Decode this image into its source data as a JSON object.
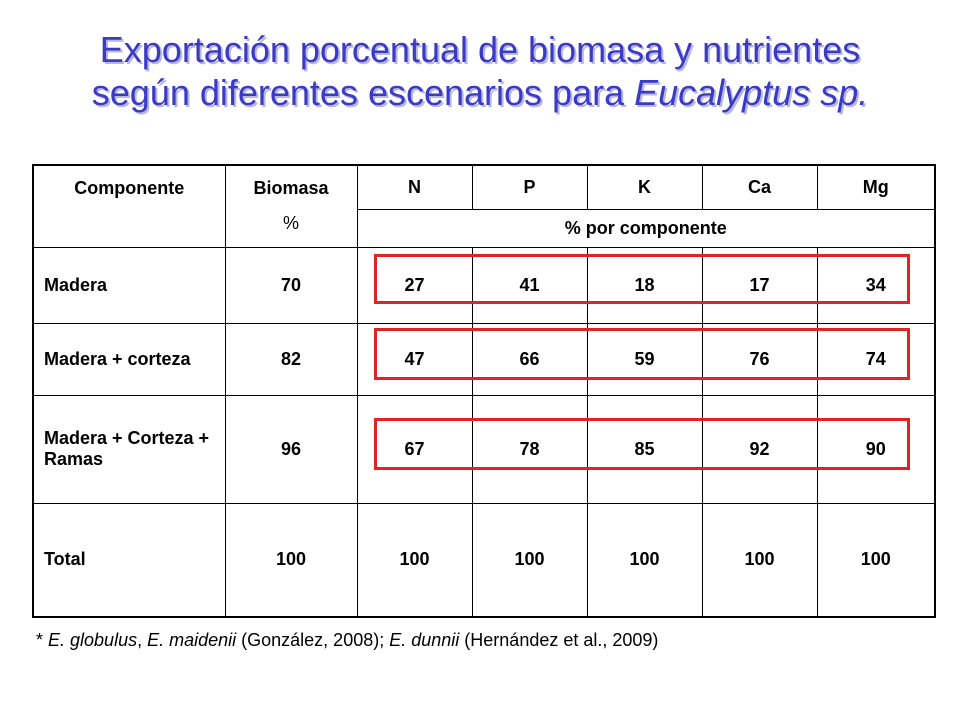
{
  "title": {
    "line1": "Exportación porcentual de biomasa y nutrientes",
    "line2_prefix": "según diferentes escenarios para ",
    "line2_italic": "Eucalyptus sp."
  },
  "table": {
    "headers": {
      "componente": "Componente",
      "biomasa": "Biomasa",
      "biomasa_unit": "%",
      "n": "N",
      "p": "P",
      "k": "K",
      "ca": "Ca",
      "mg": "Mg",
      "subheader": "% por componente"
    },
    "rows": [
      {
        "name": "Madera",
        "biomasa": "70",
        "n": "27",
        "p": "41",
        "k": "18",
        "ca": "17",
        "mg": "34"
      },
      {
        "name": "Madera + corteza",
        "biomasa": "82",
        "n": "47",
        "p": "66",
        "k": "59",
        "ca": "76",
        "mg": "74"
      },
      {
        "name": "Madera + Corteza + Ramas",
        "biomasa": "96",
        "n": "67",
        "p": "78",
        "k": "85",
        "ca": "92",
        "mg": "90"
      },
      {
        "name": "Total",
        "biomasa": "100",
        "n": "100",
        "p": "100",
        "k": "100",
        "ca": "100",
        "mg": "100"
      }
    ],
    "highlight_color": "#e02424"
  },
  "footnote": {
    "star": "* ",
    "sp1": "E. globulus",
    "sep1": ", ",
    "sp2": "E. maidenii",
    "ref1": " (González, 2008); ",
    "sp3": "E. dunnii",
    "ref2": " (Hernández et al., 2009)"
  }
}
